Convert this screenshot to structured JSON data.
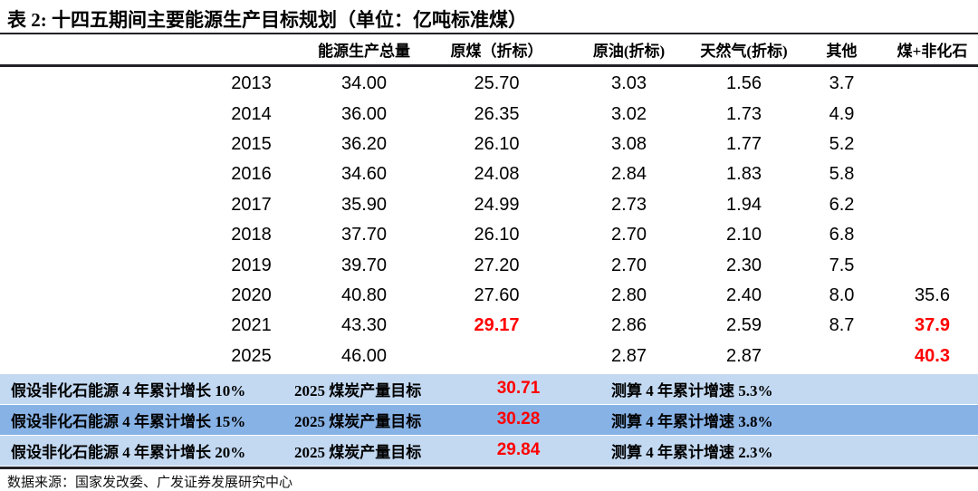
{
  "title": "表 2:  十四五期间主要能源生产目标规划（单位：亿吨标准煤）",
  "table": {
    "columns": [
      "能源生产总量",
      "原煤（折标）",
      "原油(折标)",
      "天然气(折标)",
      "其他",
      "煤+非化石"
    ],
    "rows": [
      {
        "cells": [
          "2013",
          "34.00",
          "25.70",
          "3.03",
          "1.56",
          "3.7",
          ""
        ],
        "red": []
      },
      {
        "cells": [
          "2014",
          "36.00",
          "26.35",
          "3.02",
          "1.73",
          "4.9",
          ""
        ],
        "red": []
      },
      {
        "cells": [
          "2015",
          "36.20",
          "26.10",
          "3.08",
          "1.77",
          "5.2",
          ""
        ],
        "red": []
      },
      {
        "cells": [
          "2016",
          "34.60",
          "24.08",
          "2.84",
          "1.83",
          "5.8",
          ""
        ],
        "red": []
      },
      {
        "cells": [
          "2017",
          "35.90",
          "24.99",
          "2.73",
          "1.94",
          "6.2",
          ""
        ],
        "red": []
      },
      {
        "cells": [
          "2018",
          "37.70",
          "26.10",
          "2.70",
          "2.10",
          "6.8",
          ""
        ],
        "red": []
      },
      {
        "cells": [
          "2019",
          "39.70",
          "27.20",
          "2.70",
          "2.30",
          "7.5",
          ""
        ],
        "red": []
      },
      {
        "cells": [
          "2020",
          "40.80",
          "27.60",
          "2.80",
          "2.40",
          "8.0",
          "35.6"
        ],
        "red": []
      },
      {
        "cells": [
          "2021",
          "43.30",
          "29.17",
          "2.86",
          "2.59",
          "8.7",
          "37.9"
        ],
        "red": [
          2,
          6
        ]
      },
      {
        "cells": [
          "2025",
          "46.00",
          "",
          "2.87",
          "2.87",
          "",
          "40.3"
        ],
        "red": [
          6
        ]
      }
    ]
  },
  "scenarios": [
    {
      "assumption": "假设非化石能源 4 年累计增长 10%",
      "target_label": "2025 煤炭产量目标",
      "value": "30.71",
      "growth": "测算 4 年累计增速 5.3%",
      "tone": "light"
    },
    {
      "assumption": "假设非化石能源 4 年累计增长 15%",
      "target_label": "2025 煤炭产量目标",
      "value": "30.28",
      "growth": "测算 4 年累计增速 3.8%",
      "tone": "dark"
    },
    {
      "assumption": "假设非化石能源 4 年累计增长 20%",
      "target_label": "2025 煤炭产量目标",
      "value": "29.84",
      "growth": "测算 4 年累计增速 2.3%",
      "tone": "light"
    }
  ],
  "footer": "数据来源：国家发改委、广发证券发展研究中心",
  "colors": {
    "highlight_red": "#FF0000",
    "row_light_blue": "#C3D9F2",
    "row_dark_blue": "#87B2E6",
    "rule": "#222228"
  }
}
